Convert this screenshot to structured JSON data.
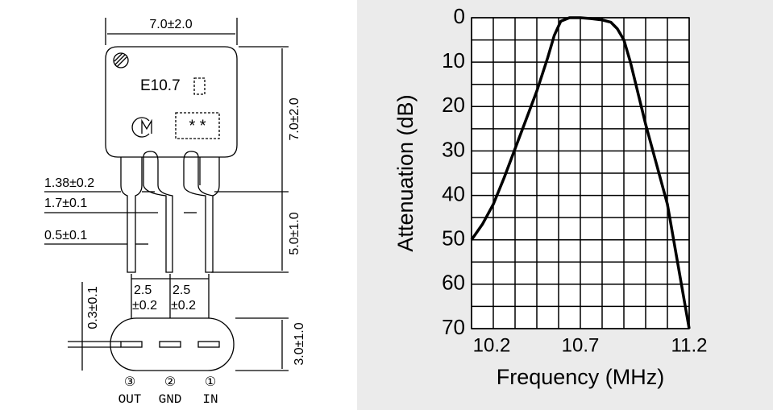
{
  "chart_data": {
    "type": "line",
    "x_label": "Frequency (MHz)",
    "y_label": "Attenuation (dB)",
    "x": [
      10.2,
      10.25,
      10.3,
      10.35,
      10.4,
      10.45,
      10.5,
      10.55,
      10.58,
      10.61,
      10.65,
      10.7,
      10.75,
      10.8,
      10.84,
      10.87,
      10.9,
      10.93,
      10.97,
      11.0,
      11.05,
      11.1,
      11.15,
      11.2
    ],
    "values": [
      50,
      46.5,
      42,
      36,
      29.5,
      23,
      16.5,
      9,
      4,
      0.8,
      0,
      0,
      0.2,
      0.5,
      1,
      2.5,
      5,
      10,
      18,
      24,
      33,
      42,
      56,
      70
    ],
    "color": "#000000",
    "xlim": [
      10.2,
      11.2
    ],
    "xticks": [
      10.2,
      10.7,
      11.2
    ],
    "xminor": [
      10.3,
      10.4,
      10.5,
      10.6,
      10.8,
      10.9,
      11.0,
      11.1
    ],
    "ylim": [
      0,
      70
    ],
    "y_inverted": true,
    "yticks": [
      0,
      10,
      20,
      30,
      40,
      50,
      60,
      70
    ],
    "yminor": [
      5,
      15,
      25,
      35,
      45,
      55,
      65
    ],
    "grid": true
  },
  "diagram": {
    "width": "7.0±2.0",
    "marking": "E10.7",
    "lot": "* *",
    "height": "7.0±2.0",
    "lead_length": "5.0±1.0",
    "lead_wide": "1.38±0.2",
    "lead_mid": "1.7±0.1",
    "lead_narrow": "0.5±0.1",
    "pitch_1": "2.5",
    "pitch_1_tol": "±0.2",
    "pitch_2": "2.5",
    "pitch_2_tol": "±0.2",
    "thickness": "0.3±0.1",
    "depth": "3.0±1.0",
    "pins": [
      {
        "number": "③",
        "name": "OUT"
      },
      {
        "number": "②",
        "name": "GND"
      },
      {
        "number": "①",
        "name": "IN"
      }
    ]
  }
}
